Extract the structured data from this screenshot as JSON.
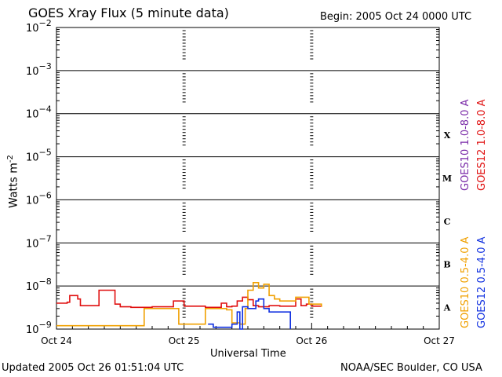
{
  "header": {
    "title": "GOES Xray Flux (5 minute data)",
    "begin": "Begin:  2005 Oct 24 0000 UTC"
  },
  "footer": {
    "updated": "Updated 2005 Oct 26 01:51:04 UTC",
    "credit": "NOAA/SEC Boulder, CO USA"
  },
  "colors": {
    "goes10_long": "#7a2aa8",
    "goes12_long": "#e01010",
    "goes10_short": "#f0a000",
    "goes12_short": "#1030e0"
  },
  "chart_data": {
    "type": "line",
    "title": "GOES Xray Flux (5 minute data)",
    "xlabel": "Universal Time",
    "ylabel": "Watts m",
    "ylabel_sup": "-2",
    "y_scale": "log",
    "ylim": [
      1e-09,
      0.01
    ],
    "y_ticks": [
      {
        "exp": -2
      },
      {
        "exp": -3
      },
      {
        "exp": -4
      },
      {
        "exp": -5
      },
      {
        "exp": -6
      },
      {
        "exp": -7
      },
      {
        "exp": -8
      },
      {
        "exp": -9
      }
    ],
    "x_ticks": [
      "Oct 24",
      "Oct 25",
      "Oct 26",
      "Oct 27"
    ],
    "xlim_days": [
      0,
      3
    ],
    "flare_classes": [
      "X",
      "M",
      "C",
      "B",
      "A"
    ],
    "grid": true,
    "legend": [
      "GOES10 1.0-8.0 A",
      "GOES12 1.0-8.0 A",
      "GOES10 0.5-4.0 A",
      "GOES12 0.5-4.0 A"
    ],
    "series": [
      {
        "name": "GOES12 1.0-8.0 A",
        "x": [
          "2005-10-24 00:00",
          "2005-10-24 02:00",
          "2005-10-24 02:30",
          "2005-10-24 04:00",
          "2005-10-24 04:30",
          "2005-10-24 07:00",
          "2005-10-24 08:00",
          "2005-10-24 10:00",
          "2005-10-24 11:00",
          "2005-10-24 12:00",
          "2005-10-24 14:00",
          "2005-10-24 18:00",
          "2005-10-24 22:00",
          "2005-10-25 00:00",
          "2005-10-25 04:00",
          "2005-10-25 06:00",
          "2005-10-25 07:00",
          "2005-10-25 08:00",
          "2005-10-25 09:00",
          "2005-10-25 10:00",
          "2005-10-25 11:00",
          "2005-10-25 12:00",
          "2005-10-25 13:00",
          "2005-10-25 14:00",
          "2005-10-25 16:00",
          "2005-10-25 18:00",
          "2005-10-25 20:00",
          "2005-10-25 21:00",
          "2005-10-25 22:00",
          "2005-10-25 23:00",
          "2005-10-26 00:00",
          "2005-10-26 01:50"
        ],
        "y": [
          4e-09,
          4.2e-09,
          6e-09,
          5e-09,
          3.5e-09,
          3.5e-09,
          8e-09,
          8e-09,
          3.8e-09,
          3.3e-09,
          3.2e-09,
          3.3e-09,
          4.5e-09,
          3.4e-09,
          3.2e-09,
          3.2e-09,
          4e-09,
          3.3e-09,
          3.4e-09,
          4.5e-09,
          5.5e-09,
          4.8e-09,
          3.5e-09,
          3.3e-09,
          3.5e-09,
          3.4e-09,
          3.4e-09,
          5e-09,
          3.5e-09,
          3.8e-09,
          3.4e-09,
          3.3e-09
        ]
      },
      {
        "name": "GOES10 0.5-4.0 A",
        "x": [
          "2005-10-24 00:00",
          "2005-10-24 08:00",
          "2005-10-24 15:30",
          "2005-10-24 16:30",
          "2005-10-24 22:00",
          "2005-10-24 23:00",
          "2005-10-25 03:00",
          "2005-10-25 04:00",
          "2005-10-25 08:00",
          "2005-10-25 09:00",
          "2005-10-25 10:30",
          "2005-10-25 11:30",
          "2005-10-25 12:00",
          "2005-10-25 13:00",
          "2005-10-25 14:00",
          "2005-10-25 15:00",
          "2005-10-25 16:00",
          "2005-10-25 17:00",
          "2005-10-25 18:00",
          "2005-10-25 21:00",
          "2005-10-25 23:30",
          "2005-10-26 01:50"
        ],
        "y": [
          1.2e-09,
          1.2e-09,
          1.2e-09,
          3e-09,
          3e-09,
          1.3e-09,
          1.3e-09,
          3e-09,
          2.8e-09,
          1.4e-09,
          1.3e-09,
          3e-09,
          8e-09,
          1.2e-08,
          9e-09,
          1.1e-08,
          6e-09,
          5e-09,
          4.5e-09,
          5.5e-09,
          3.8e-09,
          3.3e-09
        ]
      },
      {
        "name": "GOES12 0.5-4.0 A",
        "x": [
          "2005-10-25 04:30",
          "2005-10-25 05:30",
          "2005-10-25 09:00",
          "2005-10-25 10:00",
          "2005-10-25 10:30",
          "2005-10-25 11:00",
          "2005-10-25 12:00",
          "2005-10-25 13:30",
          "2005-10-25 14:00",
          "2005-10-25 15:00",
          "2005-10-25 16:00",
          "2005-10-25 20:00"
        ],
        "y": [
          1.3e-09,
          1.1e-09,
          1.3e-09,
          2.5e-09,
          1e-09,
          3.3e-09,
          3e-09,
          4.5e-09,
          5e-09,
          3e-09,
          2.5e-09,
          1e-09
        ]
      }
    ]
  }
}
